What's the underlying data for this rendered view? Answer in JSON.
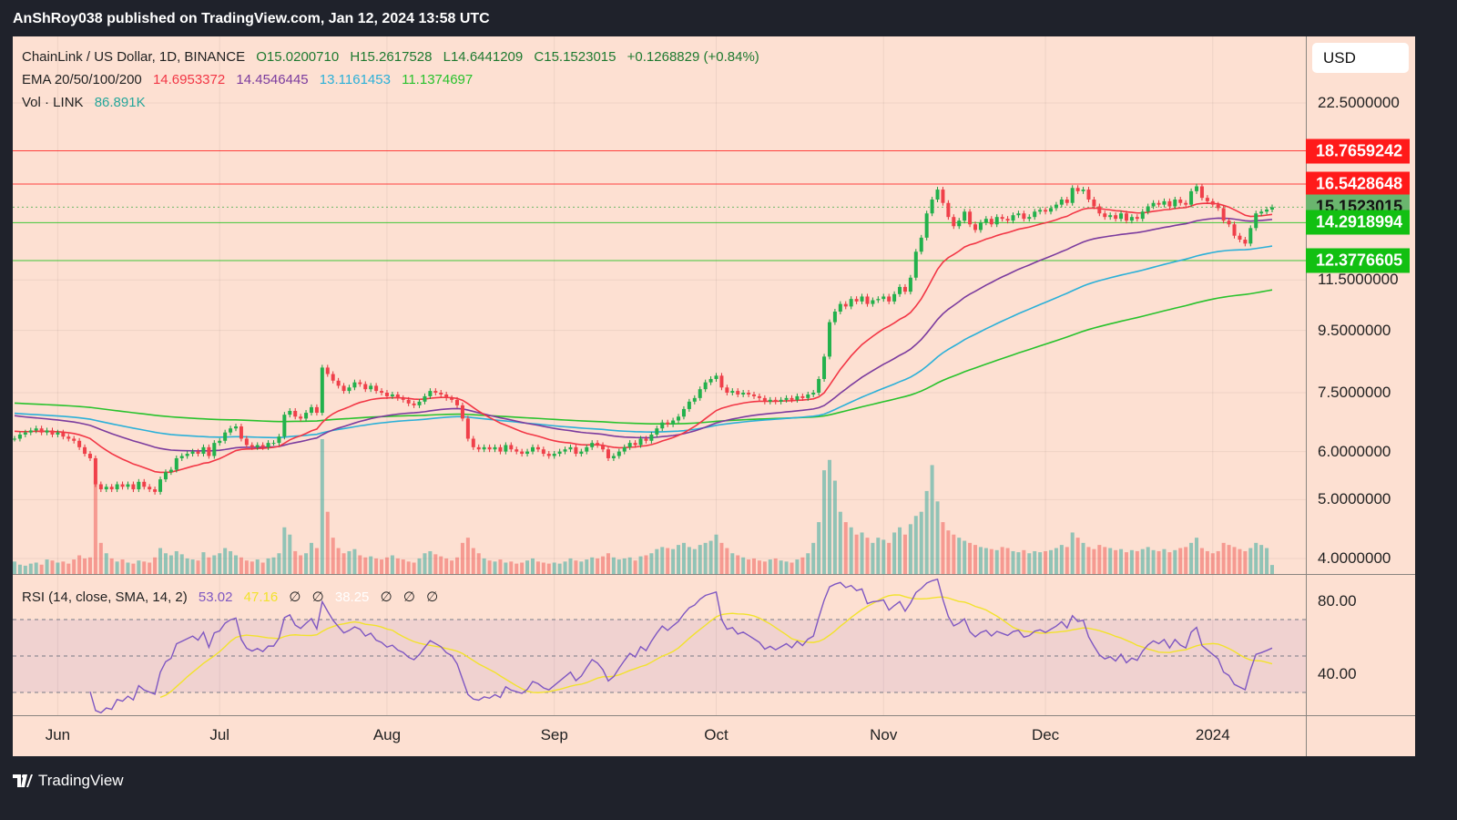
{
  "header": {
    "published": "AnShRoy038 published on TradingView.com, Jan 12, 2024 13:58 UTC"
  },
  "legend": {
    "symbol": "ChainLink / US Dollar, 1D, BINANCE",
    "open": "O15.0200710",
    "high": "H15.2617528",
    "low": "L14.6441209",
    "close": "C15.1523015",
    "change": "+0.1268829 (+0.84%)",
    "ema_label": "EMA 20/50/100/200",
    "ema20": "14.6953372",
    "ema50": "14.4546445",
    "ema100": "13.1161453",
    "ema200": "11.1374697",
    "vol_label": "Vol · LINK",
    "vol_value": "86.891K",
    "rsi_label": "RSI (14, close, SMA, 14, 2)",
    "rsi_value": "53.02",
    "rsi_sma": "47.16",
    "rsi_na1": "∅",
    "rsi_na2": "∅",
    "rsi_other": "38.25",
    "rsi_na3": "∅",
    "rsi_na4": "∅",
    "rsi_na5": "∅"
  },
  "currency": "USD",
  "footer": {
    "brand": "TradingView",
    "logo_icon": "tradingview-logo-icon"
  },
  "colors": {
    "up": "#26a69a",
    "down": "#ef5350",
    "ema20": "#f23645",
    "ema50": "#7b3b9e",
    "ema100": "#2bb0d8",
    "ema200": "#28c22c",
    "rsi": "#7e57c2",
    "rsi_sma": "#f2e22c",
    "resistance": "#ff1a1a",
    "support": "#12c012",
    "background": "#fde0d2"
  },
  "chart_data": {
    "type": "candlestick",
    "y_scale": "log",
    "y_ticks": [
      22.5,
      11.5,
      9.5,
      7.5,
      6.0,
      5.0,
      4.0
    ],
    "y_tick_labels": [
      "22.5000000",
      "11.5000000",
      "9.5000000",
      "7.5000000",
      "6.0000000",
      "5.0000000",
      "4.0000000"
    ],
    "x_tick_labels": [
      {
        "label": "Jun",
        "month": "2023-06"
      },
      {
        "label": "Jul",
        "month": "2023-07"
      },
      {
        "label": "Aug",
        "month": "2023-08"
      },
      {
        "label": "Sep",
        "month": "2023-09"
      },
      {
        "label": "Oct",
        "month": "2023-10"
      },
      {
        "label": "Nov",
        "month": "2023-11"
      },
      {
        "label": "Dec",
        "month": "2023-12"
      },
      {
        "label": "2024",
        "month": "2024-01"
      }
    ],
    "horizontal_levels": [
      {
        "value": 18.7659242,
        "label": "18.7659242",
        "kind": "resistance"
      },
      {
        "value": 16.5428648,
        "label": "16.5428648",
        "kind": "resistance"
      },
      {
        "value": 15.1523015,
        "label": "15.1523015",
        "kind": "last"
      },
      {
        "value": 14.2918994,
        "label": "14.2918994",
        "kind": "support"
      },
      {
        "value": 12.3776605,
        "label": "12.3776605",
        "kind": "support"
      }
    ],
    "ema_start": {
      "ema20": 6.5,
      "ema50": 6.9,
      "ema100": 6.95,
      "ema200": 7.22
    },
    "rsi_ticks": [
      80,
      40
    ],
    "rsi_tick_labels": [
      "80.00",
      "40.00"
    ],
    "rsi_bands": [
      70,
      50,
      30
    ],
    "daily": [
      {
        "month": "2023-05",
        "start_day": 24,
        "close": [
          6.3,
          6.4,
          6.45,
          6.5,
          6.55,
          6.45,
          6.5,
          6.4
        ],
        "volume_k": [
          120,
          90,
          80,
          100,
          110,
          90,
          140,
          130
        ]
      },
      {
        "month": "2023-06",
        "start_day": 1,
        "close": [
          6.45,
          6.35,
          6.3,
          6.25,
          6.1,
          5.95,
          5.85,
          5.3,
          5.2,
          5.25,
          5.2,
          5.3,
          5.25,
          5.3,
          5.2,
          5.35,
          5.25,
          5.2,
          5.15,
          5.4,
          5.55,
          5.6,
          5.85,
          5.9,
          5.95,
          6.0,
          5.95,
          6.1,
          5.9,
          6.2
        ],
        "volume_k": [
          110,
          120,
          100,
          140,
          180,
          150,
          160,
          900,
          300,
          200,
          150,
          120,
          140,
          110,
          100,
          130,
          120,
          110,
          160,
          250,
          200,
          180,
          220,
          190,
          150,
          140,
          130,
          210,
          160,
          180
        ]
      },
      {
        "month": "2023-07",
        "start_day": 1,
        "close": [
          6.25,
          6.45,
          6.55,
          6.6,
          6.3,
          6.15,
          6.1,
          6.15,
          6.1,
          6.2,
          6.2,
          6.35,
          6.9,
          7.0,
          6.85,
          6.8,
          6.95,
          7.1,
          6.95,
          8.25,
          8.05,
          7.85,
          7.7,
          7.55,
          7.65,
          7.8,
          7.75,
          7.6,
          7.7,
          7.55,
          7.5
        ],
        "volume_k": [
          200,
          250,
          220,
          180,
          160,
          130,
          120,
          140,
          110,
          150,
          160,
          200,
          450,
          380,
          220,
          180,
          200,
          300,
          250,
          1300,
          600,
          350,
          250,
          200,
          220,
          240,
          180,
          160,
          170,
          150,
          140
        ]
      },
      {
        "month": "2023-08",
        "start_day": 1,
        "close": [
          7.4,
          7.45,
          7.35,
          7.3,
          7.2,
          7.15,
          7.25,
          7.4,
          7.55,
          7.5,
          7.45,
          7.35,
          7.3,
          7.15,
          6.8,
          6.3,
          6.1,
          6.05,
          6.1,
          6.05,
          6.1,
          6.0,
          6.15,
          6.05,
          6.0,
          5.95,
          6.0,
          6.1,
          6.05,
          5.95,
          5.9
        ],
        "volume_k": [
          160,
          180,
          150,
          140,
          120,
          110,
          150,
          200,
          220,
          190,
          170,
          150,
          130,
          160,
          300,
          350,
          250,
          200,
          150,
          130,
          120,
          140,
          110,
          120,
          100,
          110,
          130,
          150,
          120,
          110,
          100
        ]
      },
      {
        "month": "2023-09",
        "start_day": 1,
        "close": [
          5.95,
          6.0,
          6.05,
          6.1,
          5.95,
          6.0,
          6.1,
          6.2,
          6.15,
          6.05,
          5.85,
          5.9,
          6.0,
          6.1,
          6.2,
          6.15,
          6.3,
          6.25,
          6.4,
          6.55,
          6.7,
          6.65,
          6.75,
          6.85,
          7.05,
          7.25,
          7.35,
          7.6,
          7.8,
          7.9
        ],
        "volume_k": [
          110,
          100,
          120,
          150,
          130,
          120,
          140,
          160,
          150,
          170,
          200,
          160,
          140,
          150,
          160,
          130,
          170,
          180,
          200,
          240,
          260,
          250,
          240,
          280,
          300,
          260,
          240,
          280,
          300,
          320
        ]
      },
      {
        "month": "2023-10",
        "start_day": 1,
        "close": [
          8.0,
          7.65,
          7.5,
          7.55,
          7.45,
          7.5,
          7.45,
          7.4,
          7.35,
          7.25,
          7.3,
          7.25,
          7.3,
          7.35,
          7.3,
          7.4,
          7.35,
          7.45,
          7.5,
          7.9,
          8.6,
          9.8,
          10.2,
          10.5,
          10.4,
          10.7,
          10.6,
          10.8,
          10.5,
          10.65,
          10.7
        ],
        "volume_k": [
          380,
          300,
          250,
          200,
          180,
          160,
          140,
          150,
          130,
          120,
          140,
          150,
          130,
          120,
          110,
          140,
          160,
          200,
          300,
          500,
          1000,
          1100,
          900,
          600,
          500,
          450,
          380,
          400,
          350,
          300,
          350
        ]
      },
      {
        "month": "2023-11",
        "start_day": 1,
        "close": [
          10.8,
          10.6,
          10.9,
          11.2,
          11.0,
          11.6,
          12.8,
          13.5,
          14.8,
          15.6,
          16.2,
          15.4,
          14.6,
          14.1,
          14.4,
          14.9,
          14.2,
          13.9,
          14.3,
          14.5,
          14.2,
          14.6,
          14.5,
          14.4,
          14.7,
          14.8,
          14.5,
          14.6,
          14.9,
          15.0
        ],
        "volume_k": [
          330,
          300,
          400,
          450,
          380,
          480,
          560,
          600,
          800,
          1050,
          700,
          500,
          420,
          380,
          350,
          320,
          300,
          280,
          260,
          250,
          240,
          230,
          260,
          250,
          220,
          210,
          230,
          200,
          220,
          210
        ]
      },
      {
        "month": "2023-12",
        "start_day": 1,
        "close": [
          14.9,
          15.1,
          15.3,
          15.6,
          15.4,
          16.3,
          16.1,
          16.2,
          15.6,
          15.2,
          14.8,
          14.6,
          14.7,
          14.5,
          14.8,
          14.4,
          14.6,
          14.5,
          14.9,
          15.2,
          15.4,
          15.3,
          15.5,
          15.2,
          15.6,
          15.4,
          15.3,
          16.1,
          16.4,
          15.7,
          15.5
        ],
        "volume_k": [
          220,
          230,
          250,
          280,
          260,
          400,
          350,
          300,
          260,
          240,
          280,
          260,
          250,
          230,
          240,
          210,
          230,
          220,
          240,
          260,
          230,
          220,
          240,
          210,
          230,
          250,
          260,
          300,
          350,
          250,
          220
        ]
      },
      {
        "month": "2024-01",
        "start_day": 1,
        "close": [
          15.3,
          15.1,
          14.4,
          14.2,
          13.6,
          13.4,
          13.2,
          14.0,
          14.8,
          14.9,
          15.02,
          15.15
        ],
        "volume_k": [
          200,
          220,
          300,
          280,
          260,
          240,
          220,
          250,
          300,
          280,
          250,
          87
        ]
      }
    ]
  }
}
